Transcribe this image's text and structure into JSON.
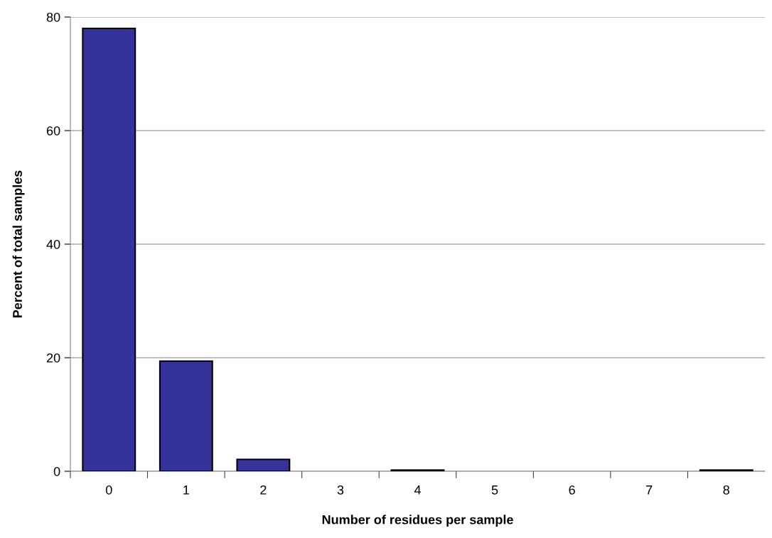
{
  "chart_data": {
    "type": "bar",
    "xlabel": "Number of residues per sample",
    "ylabel": "Percent of total samples",
    "categories": [
      "0",
      "1",
      "2",
      "3",
      "4",
      "5",
      "6",
      "7",
      "8"
    ],
    "values": [
      78.0,
      19.4,
      2.1,
      0,
      0.2,
      0,
      0,
      0,
      0.2
    ],
    "color": "#333399",
    "ylim": [
      0,
      80
    ],
    "yticks": [
      0,
      20,
      40,
      60,
      80
    ],
    "grid": "y",
    "legend": false
  }
}
